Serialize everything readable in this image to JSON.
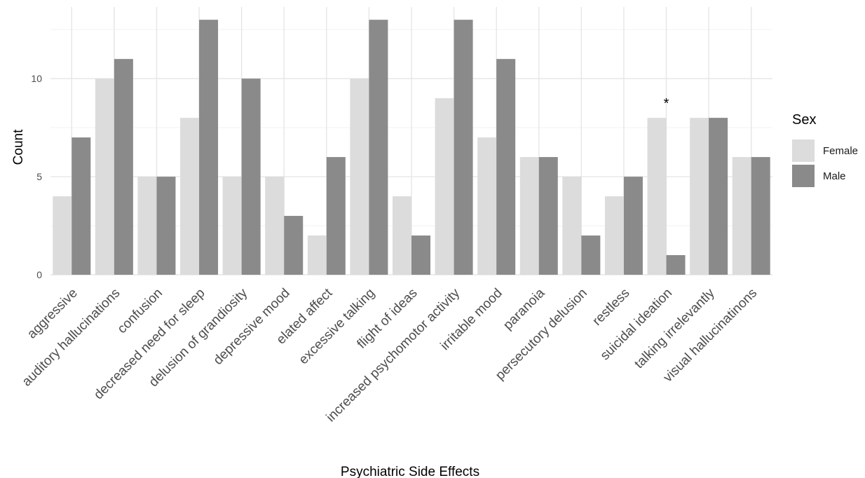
{
  "chart_data": {
    "type": "bar",
    "xlabel": "Psychiatric Side Effects",
    "ylabel": "Count",
    "ylim": [
      0,
      13.65
    ],
    "yticks": [
      0,
      5,
      10
    ],
    "grid": true,
    "legend_title": "Sex",
    "legend_position": "right",
    "categories": [
      "aggressive",
      "auditory hallucinations",
      "confusion",
      "decreased need for sleep",
      "delusion of grandiosity",
      "depressive mood",
      "elated affect",
      "excessive talking",
      "flight of ideas",
      "increased psychomotor activity",
      "irritable mood",
      "paranoia",
      "persecutory delusion",
      "restless",
      "suicidal ideation",
      "talking irrelevantly",
      "visual hallucinatinons"
    ],
    "series": [
      {
        "name": "Female",
        "color": "#dcdcdc",
        "values": [
          4,
          10,
          5,
          8,
          5,
          5,
          2,
          10,
          4,
          9,
          7,
          6,
          5,
          4,
          8,
          8,
          6
        ]
      },
      {
        "name": "Male",
        "color": "#8a8a8a",
        "values": [
          7,
          11,
          5,
          13,
          10,
          3,
          6,
          13,
          2,
          13,
          11,
          6,
          2,
          5,
          1,
          8,
          6
        ]
      }
    ],
    "annotations": [
      {
        "text": "*",
        "category": "suicidal ideation",
        "y": 9
      }
    ]
  }
}
